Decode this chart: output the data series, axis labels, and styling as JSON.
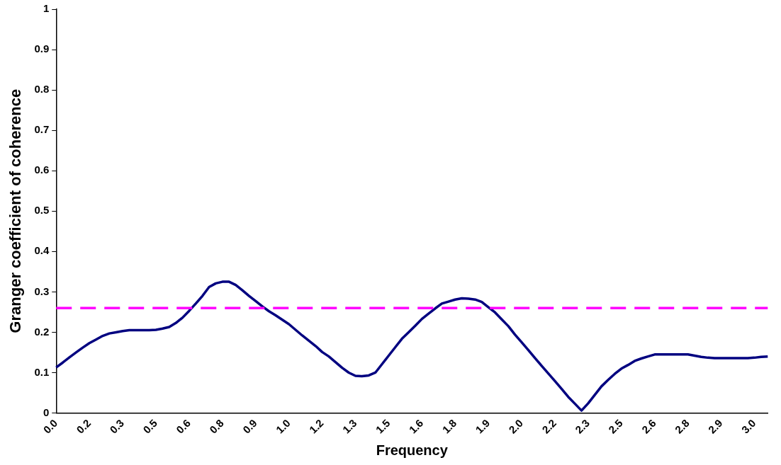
{
  "chart_data": {
    "type": "line",
    "xlabel": "Frequency",
    "ylabel": "Granger coefficient of coherence",
    "categories": [
      "0.0",
      null,
      null,
      null,
      null,
      "0.2",
      null,
      null,
      null,
      null,
      "0.3",
      null,
      null,
      null,
      null,
      "0.5",
      null,
      null,
      null,
      null,
      "0.6",
      null,
      null,
      null,
      null,
      "0.8",
      null,
      null,
      null,
      null,
      "0.9",
      null,
      null,
      null,
      null,
      "1.0",
      null,
      null,
      null,
      null,
      "1.2",
      null,
      null,
      null,
      null,
      "1.3",
      null,
      null,
      null,
      null,
      "1.5",
      null,
      null,
      null,
      null,
      "1.6",
      null,
      null,
      null,
      null,
      "1.8",
      null,
      null,
      null,
      null,
      "1.9",
      null,
      null,
      null,
      null,
      "2.0",
      null,
      null,
      null,
      null,
      "2.2",
      null,
      null,
      null,
      null,
      "2.3",
      null,
      null,
      null,
      null,
      "2.5",
      null,
      null,
      null,
      null,
      "2.6",
      null,
      null,
      null,
      null,
      "2.8",
      null,
      null,
      null,
      null,
      "2.9",
      null,
      null,
      null,
      null,
      "3.0",
      null,
      null
    ],
    "series": [
      {
        "color": "#000080",
        "values": [
          0.113,
          0.125,
          0.138,
          0.15,
          0.162,
          0.173,
          0.182,
          0.191,
          0.197,
          0.2,
          0.203,
          0.205,
          0.205,
          0.205,
          0.205,
          0.206,
          0.209,
          0.213,
          0.223,
          0.236,
          0.253,
          0.271,
          0.29,
          0.312,
          0.321,
          0.325,
          0.325,
          0.317,
          0.304,
          0.29,
          0.277,
          0.264,
          0.252,
          0.242,
          0.231,
          0.22,
          0.206,
          0.192,
          0.179,
          0.166,
          0.151,
          0.14,
          0.126,
          0.112,
          0.1,
          0.092,
          0.091,
          0.093,
          0.1,
          0.121,
          0.142,
          0.163,
          0.184,
          0.2,
          0.216,
          0.233,
          0.246,
          0.259,
          0.271,
          0.276,
          0.281,
          0.284,
          0.283,
          0.281,
          0.275,
          0.262,
          0.249,
          0.232,
          0.215,
          0.194,
          0.175,
          0.156,
          0.136,
          0.117,
          0.098,
          0.079,
          0.06,
          0.04,
          0.023,
          0.006,
          0.024,
          0.045,
          0.066,
          0.082,
          0.097,
          0.11,
          0.119,
          0.129,
          0.135,
          0.14,
          0.145,
          0.145,
          0.145,
          0.145,
          0.145,
          0.145,
          0.142,
          0.139,
          0.137,
          0.136,
          0.136,
          0.136,
          0.136,
          0.136,
          0.136,
          0.137,
          0.139,
          0.14
        ]
      }
    ],
    "ylim": [
      0,
      1
    ],
    "yticks": [
      0,
      0.1,
      0.2,
      0.3,
      0.4,
      0.5,
      0.6,
      0.7,
      0.8,
      0.9,
      1
    ],
    "ref_lines": [
      {
        "axis": "y",
        "value": 0.26,
        "color": "#ff00ff",
        "line_style": "dashed"
      }
    ],
    "grid": false,
    "legend": false
  }
}
